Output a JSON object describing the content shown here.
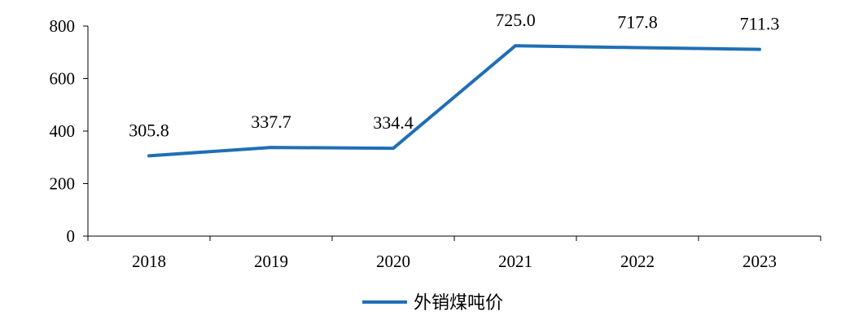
{
  "chart_data": {
    "type": "line",
    "title": "",
    "xlabel": "",
    "ylabel": "",
    "categories": [
      "2018",
      "2019",
      "2020",
      "2021",
      "2022",
      "2023"
    ],
    "series": [
      {
        "name": "外销煤吨价",
        "values": [
          305.8,
          337.7,
          334.4,
          725.0,
          717.8,
          711.3
        ],
        "data_labels": [
          "305.8",
          "337.7",
          "334.4",
          "725.0",
          "717.8",
          "711.3"
        ],
        "color": "#1f6fb5"
      }
    ],
    "yticks": [
      0,
      200,
      400,
      600,
      800
    ],
    "ylim": [
      0,
      800
    ],
    "grid": false,
    "legend": "bottom"
  }
}
